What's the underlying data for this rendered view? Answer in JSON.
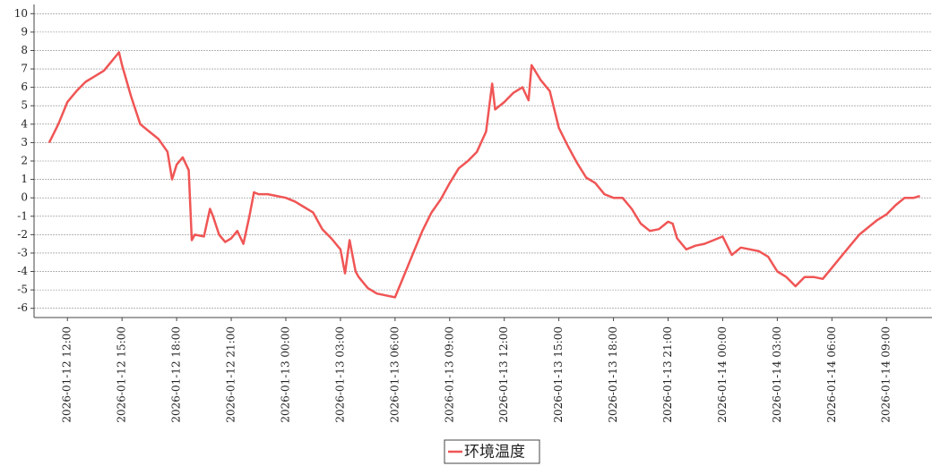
{
  "chart_data": {
    "type": "line",
    "x": [
      "2026-01-12 11:00",
      "2026-01-12 11:30",
      "2026-01-12 12:00",
      "2026-01-12 12:30",
      "2026-01-12 13:00",
      "2026-01-12 13:30",
      "2026-01-12 14:00",
      "2026-01-12 14:30",
      "2026-01-12 14:50",
      "2026-01-12 15:00",
      "2026-01-12 15:30",
      "2026-01-12 16:00",
      "2026-01-12 16:30",
      "2026-01-12 17:00",
      "2026-01-12 17:30",
      "2026-01-12 17:45",
      "2026-01-12 18:00",
      "2026-01-12 18:20",
      "2026-01-12 18:40",
      "2026-01-12 18:50",
      "2026-01-12 19:00",
      "2026-01-12 19:30",
      "2026-01-12 19:50",
      "2026-01-12 20:00",
      "2026-01-12 20:20",
      "2026-01-12 20:40",
      "2026-01-12 21:00",
      "2026-01-12 21:20",
      "2026-01-12 21:40",
      "2026-01-12 22:00",
      "2026-01-12 22:15",
      "2026-01-12 22:30",
      "2026-01-12 23:00",
      "2026-01-12 23:30",
      "2026-01-13 00:00",
      "2026-01-13 00:30",
      "2026-01-13 01:00",
      "2026-01-13 01:30",
      "2026-01-13 02:00",
      "2026-01-13 02:30",
      "2026-01-13 03:00",
      "2026-01-13 03:15",
      "2026-01-13 03:30",
      "2026-01-13 03:50",
      "2026-01-13 04:00",
      "2026-01-13 04:30",
      "2026-01-13 05:00",
      "2026-01-13 05:30",
      "2026-01-13 06:00",
      "2026-01-13 06:30",
      "2026-01-13 07:00",
      "2026-01-13 07:30",
      "2026-01-13 08:00",
      "2026-01-13 08:30",
      "2026-01-13 09:00",
      "2026-01-13 09:30",
      "2026-01-13 10:00",
      "2026-01-13 10:30",
      "2026-01-13 11:00",
      "2026-01-13 11:20",
      "2026-01-13 11:30",
      "2026-01-13 12:00",
      "2026-01-13 12:30",
      "2026-01-13 13:00",
      "2026-01-13 13:20",
      "2026-01-13 13:30",
      "2026-01-13 14:00",
      "2026-01-13 14:30",
      "2026-01-13 15:00",
      "2026-01-13 15:30",
      "2026-01-13 16:00",
      "2026-01-13 16:30",
      "2026-01-13 17:00",
      "2026-01-13 17:30",
      "2026-01-13 18:00",
      "2026-01-13 18:30",
      "2026-01-13 19:00",
      "2026-01-13 19:30",
      "2026-01-13 20:00",
      "2026-01-13 20:30",
      "2026-01-13 21:00",
      "2026-01-13 21:15",
      "2026-01-13 21:30",
      "2026-01-13 22:00",
      "2026-01-13 22:30",
      "2026-01-13 23:00",
      "2026-01-13 23:30",
      "2026-01-14 00:00",
      "2026-01-14 00:30",
      "2026-01-14 01:00",
      "2026-01-14 01:30",
      "2026-01-14 02:00",
      "2026-01-14 02:30",
      "2026-01-14 03:00",
      "2026-01-14 03:30",
      "2026-01-14 04:00",
      "2026-01-14 04:30",
      "2026-01-14 05:00",
      "2026-01-14 05:30",
      "2026-01-14 06:00",
      "2026-01-14 06:30",
      "2026-01-14 07:00",
      "2026-01-14 07:30",
      "2026-01-14 08:00",
      "2026-01-14 08:30",
      "2026-01-14 09:00",
      "2026-01-14 09:30",
      "2026-01-14 10:00",
      "2026-01-14 10:30",
      "2026-01-14 10:50"
    ],
    "series": [
      {
        "name": "环境温度",
        "color": "#f05555",
        "values": [
          3.0,
          4.0,
          5.2,
          5.8,
          6.3,
          6.6,
          6.9,
          7.5,
          7.9,
          7.2,
          5.5,
          4.0,
          3.6,
          3.2,
          2.5,
          1.0,
          1.8,
          2.2,
          1.5,
          -2.3,
          -2.0,
          -2.1,
          -0.6,
          -1.0,
          -2.0,
          -2.4,
          -2.2,
          -1.8,
          -2.5,
          -1.0,
          0.3,
          0.2,
          0.2,
          0.1,
          0.0,
          -0.2,
          -0.5,
          -0.8,
          -1.7,
          -2.2,
          -2.8,
          -4.1,
          -2.3,
          -4.0,
          -4.3,
          -4.9,
          -5.2,
          -5.3,
          -5.4,
          -4.2,
          -3.0,
          -1.8,
          -0.8,
          -0.1,
          0.8,
          1.6,
          2.0,
          2.5,
          3.6,
          6.2,
          4.8,
          5.2,
          5.7,
          6.0,
          5.3,
          7.2,
          6.4,
          5.8,
          3.8,
          2.8,
          1.9,
          1.1,
          0.8,
          0.2,
          0.0,
          0.0,
          -0.6,
          -1.4,
          -1.8,
          -1.7,
          -1.3,
          -1.4,
          -2.2,
          -2.8,
          -2.6,
          -2.5,
          -2.3,
          -2.1,
          -3.1,
          -2.7,
          -2.8,
          -2.9,
          -3.2,
          -4.0,
          -4.3,
          -4.8,
          -4.3,
          -4.3,
          -4.4,
          -3.8,
          -3.2,
          -2.6,
          -2.0,
          -1.6,
          -1.2,
          -0.9,
          -0.4,
          0.0,
          0.0,
          0.1
        ]
      }
    ],
    "xlim": [
      "2026-01-12 10:10",
      "2026-01-14 11:30"
    ],
    "xticks": [
      "2026-01-12 12:00",
      "2026-01-12 15:00",
      "2026-01-12 18:00",
      "2026-01-12 21:00",
      "2026-01-13 00:00",
      "2026-01-13 03:00",
      "2026-01-13 06:00",
      "2026-01-13 09:00",
      "2026-01-13 12:00",
      "2026-01-13 15:00",
      "2026-01-13 18:00",
      "2026-01-13 21:00",
      "2026-01-14 00:00",
      "2026-01-14 03:00",
      "2026-01-14 06:00",
      "2026-01-14 09:00"
    ],
    "ylim": [
      -6.5,
      10.5
    ],
    "yticks": [
      -6,
      -5,
      -4,
      -3,
      -2,
      -1,
      0,
      1,
      2,
      3,
      4,
      5,
      6,
      7,
      8,
      9,
      10
    ],
    "grid": true,
    "legend": "bottom"
  }
}
